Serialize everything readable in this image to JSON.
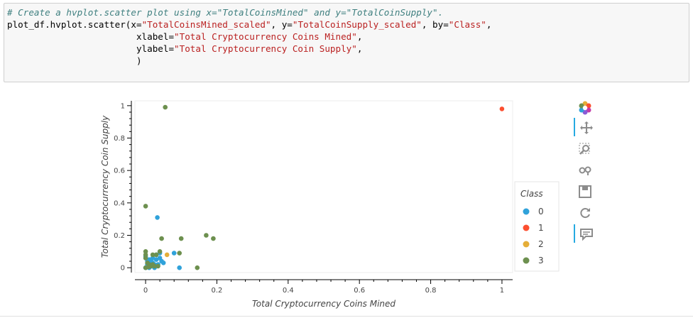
{
  "cell": {
    "comment": "# Create a hvplot.scatter plot using x=\"TotalCoinsMined\" and y=\"TotalCoinSupply\".",
    "line1_a": "plot_df.hvplot.scatter(x=",
    "line1_s1": "\"TotalCoinsMined_scaled\"",
    "line1_b": ", y=",
    "line1_s2": "\"TotalCoinSupply_scaled\"",
    "line1_c": ", by=",
    "line1_s3": "\"Class\"",
    "line1_d": ",",
    "line2_a": "                        xlabel=",
    "line2_s": "\"Total Cryptocurrency Coins Mined\"",
    "line2_b": ",",
    "line3_a": "                        ylabel=",
    "line3_s": "\"Total Cryptocurrency Coin Supply\"",
    "line3_b": ",",
    "line4": "                        )"
  },
  "toolbar": {
    "icons": [
      "bokeh-logo-icon",
      "pan-icon",
      "box-zoom-icon",
      "wheel-zoom-icon",
      "save-icon",
      "reset-icon",
      "hover-icon"
    ]
  },
  "chart_data": {
    "type": "scatter",
    "xlabel": "Total Cryptocurrency Coins Mined",
    "ylabel": "Total Cryptocurrency Coin Supply",
    "xlim": [
      -0.03,
      1.03
    ],
    "ylim": [
      -0.03,
      1.03
    ],
    "xticks": [
      0,
      0.2,
      0.4,
      0.6,
      0.8,
      1
    ],
    "xtick_labels": [
      "0",
      "0.2",
      "0.4",
      "0.6",
      "0.8",
      "1"
    ],
    "yticks": [
      0,
      0.2,
      0.4,
      0.6,
      0.8,
      1
    ],
    "ytick_labels": [
      "0",
      "0.2",
      "0.4",
      "0.6",
      "0.8",
      "1"
    ],
    "grid": false,
    "legend_title": "Class",
    "legend_position": "right",
    "series": [
      {
        "name": "0",
        "color": "#30a2da",
        "points": [
          [
            0.0,
            0.07
          ],
          [
            0.005,
            0.02
          ],
          [
            0.01,
            0.05
          ],
          [
            0.015,
            0.01
          ],
          [
            0.02,
            0.03
          ],
          [
            0.025,
            0.0
          ],
          [
            0.01,
            0.0
          ],
          [
            0.005,
            0.04
          ],
          [
            0.03,
            0.05
          ],
          [
            0.035,
            0.02
          ],
          [
            0.04,
            0.06
          ],
          [
            0.045,
            0.04
          ],
          [
            0.05,
            0.03
          ],
          [
            0.02,
            0.06
          ],
          [
            0.03,
            0.08
          ],
          [
            0.04,
            0.09
          ],
          [
            0.033,
            0.31
          ],
          [
            0.095,
            0.0
          ],
          [
            0.08,
            0.09
          ],
          [
            0.015,
            0.04
          ],
          [
            0.025,
            0.02
          ],
          [
            0.0,
            0.0
          ],
          [
            0.012,
            0.015
          ],
          [
            0.028,
            0.01
          ]
        ]
      },
      {
        "name": "1",
        "color": "#fc4f30",
        "points": [
          [
            1.0,
            0.98
          ]
        ]
      },
      {
        "name": "2",
        "color": "#e5ae38",
        "points": [
          [
            0.06,
            0.08
          ]
        ]
      },
      {
        "name": "3",
        "color": "#6d904f",
        "points": [
          [
            0.055,
            0.99
          ],
          [
            0.0,
            0.38
          ],
          [
            0.0,
            0.1
          ],
          [
            0.0,
            0.08
          ],
          [
            0.0,
            0.06
          ],
          [
            0.005,
            0.03
          ],
          [
            0.01,
            0.02
          ],
          [
            0.0,
            0.0
          ],
          [
            0.045,
            0.18
          ],
          [
            0.1,
            0.18
          ],
          [
            0.17,
            0.2
          ],
          [
            0.19,
            0.18
          ],
          [
            0.145,
            0.0
          ],
          [
            0.095,
            0.09
          ],
          [
            0.02,
            0.08
          ],
          [
            0.03,
            0.08
          ],
          [
            0.04,
            0.1
          ],
          [
            0.015,
            0.01
          ],
          [
            0.025,
            0.01
          ],
          [
            0.035,
            0.01
          ],
          [
            0.008,
            0.005
          ],
          [
            0.02,
            0.02
          ]
        ]
      }
    ]
  }
}
